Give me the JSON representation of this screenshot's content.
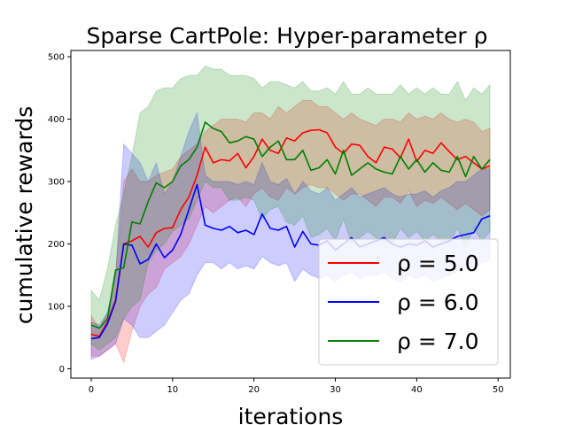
{
  "chart_data": {
    "type": "line",
    "title": "Sparse CartPole: Hyper-parameter ρ",
    "xlabel": "iterations",
    "ylabel": "cumulative rewards",
    "xlim": [
      -2.5,
      51.5
    ],
    "ylim": [
      -15,
      510
    ],
    "xticks": [
      0,
      10,
      20,
      30,
      40,
      50
    ],
    "yticks": [
      0,
      100,
      200,
      300,
      400,
      500
    ],
    "legend_position": "lower-right",
    "x": [
      0,
      1,
      2,
      3,
      4,
      5,
      6,
      7,
      8,
      9,
      10,
      11,
      12,
      13,
      14,
      15,
      16,
      17,
      18,
      19,
      20,
      21,
      22,
      23,
      24,
      25,
      26,
      27,
      28,
      29,
      30,
      31,
      32,
      33,
      34,
      35,
      36,
      37,
      38,
      39,
      40,
      41,
      42,
      43,
      44,
      45,
      46,
      47,
      48,
      49
    ],
    "series": [
      {
        "name": "ρ = 5.0",
        "color": "#ff0000",
        "fill": "rgba(255,0,0,0.2)",
        "values": [
          55,
          52,
          75,
          110,
          200,
          205,
          212,
          195,
          218,
          225,
          226,
          255,
          275,
          310,
          355,
          330,
          335,
          333,
          345,
          322,
          340,
          368,
          350,
          345,
          370,
          365,
          378,
          382,
          383,
          378,
          355,
          345,
          360,
          358,
          340,
          330,
          355,
          352,
          338,
          368,
          332,
          350,
          345,
          362,
          348,
          335,
          340,
          330,
          320,
          325
        ],
        "upper": [
          85,
          65,
          88,
          150,
          300,
          320,
          300,
          300,
          310,
          315,
          320,
          340,
          350,
          360,
          380,
          390,
          400,
          400,
          400,
          395,
          410,
          410,
          400,
          420,
          410,
          420,
          430,
          430,
          420,
          420,
          410,
          400,
          410,
          400,
          395,
          390,
          400,
          400,
          395,
          410,
          400,
          405,
          400,
          410,
          400,
          395,
          400,
          395,
          380,
          385
        ],
        "lower": [
          20,
          20,
          30,
          40,
          10,
          60,
          100,
          120,
          130,
          160,
          170,
          180,
          200,
          230,
          260,
          250,
          260,
          270,
          275,
          260,
          280,
          290,
          275,
          270,
          290,
          280,
          290,
          295,
          290,
          290,
          280,
          270,
          280,
          280,
          270,
          260,
          275,
          275,
          265,
          285,
          260,
          270,
          265,
          275,
          265,
          255,
          265,
          255,
          245,
          255
        ]
      },
      {
        "name": "ρ = 6.0",
        "color": "#0000ff",
        "fill": "rgba(0,0,255,0.2)",
        "values": [
          48,
          50,
          72,
          108,
          200,
          198,
          168,
          175,
          200,
          178,
          190,
          215,
          255,
          295,
          230,
          225,
          222,
          228,
          218,
          222,
          215,
          248,
          225,
          222,
          228,
          195,
          220,
          200,
          198,
          205,
          190,
          200,
          210,
          195,
          200,
          205,
          210,
          200,
          195,
          200,
          198,
          205,
          195,
          200,
          205,
          212,
          215,
          218,
          240,
          245
        ],
        "upper": [
          75,
          70,
          90,
          150,
          360,
          345,
          330,
          300,
          330,
          280,
          300,
          340,
          380,
          410,
          310,
          300,
          300,
          300,
          295,
          300,
          295,
          330,
          300,
          295,
          305,
          280,
          300,
          285,
          280,
          290,
          270,
          280,
          290,
          275,
          280,
          285,
          290,
          280,
          275,
          280,
          280,
          285,
          275,
          285,
          290,
          300,
          300,
          310,
          320,
          320
        ],
        "lower": [
          15,
          20,
          30,
          40,
          80,
          70,
          50,
          50,
          60,
          70,
          90,
          110,
          120,
          150,
          170,
          170,
          160,
          170,
          160,
          165,
          160,
          180,
          170,
          165,
          170,
          140,
          160,
          150,
          145,
          150,
          140,
          150,
          155,
          145,
          150,
          150,
          155,
          145,
          140,
          150,
          145,
          150,
          140,
          145,
          150,
          155,
          160,
          160,
          170,
          175
        ]
      },
      {
        "name": "ρ = 7.0",
        "color": "#008000",
        "fill": "rgba(0,128,0,0.2)",
        "values": [
          70,
          65,
          80,
          158,
          162,
          235,
          232,
          268,
          298,
          290,
          300,
          325,
          335,
          355,
          395,
          385,
          380,
          362,
          365,
          372,
          368,
          340,
          355,
          365,
          335,
          335,
          350,
          318,
          322,
          335,
          312,
          350,
          310,
          320,
          330,
          320,
          315,
          312,
          340,
          320,
          335,
          315,
          330,
          318,
          315,
          340,
          308,
          340,
          320,
          335
        ],
        "upper": [
          125,
          110,
          160,
          230,
          280,
          340,
          410,
          420,
          445,
          450,
          450,
          465,
          470,
          470,
          485,
          480,
          480,
          470,
          470,
          470,
          465,
          450,
          460,
          460,
          455,
          450,
          460,
          445,
          445,
          450,
          440,
          460,
          440,
          440,
          450,
          440,
          440,
          440,
          455,
          440,
          450,
          440,
          450,
          440,
          440,
          460,
          430,
          450,
          440,
          455
        ],
        "lower": [
          40,
          30,
          40,
          50,
          80,
          100,
          110,
          170,
          190,
          200,
          220,
          230,
          240,
          270,
          300,
          290,
          290,
          270,
          270,
          275,
          270,
          240,
          255,
          260,
          235,
          230,
          245,
          210,
          215,
          225,
          205,
          240,
          200,
          210,
          220,
          210,
          205,
          200,
          225,
          210,
          220,
          205,
          215,
          205,
          200,
          225,
          195,
          225,
          205,
          220
        ]
      }
    ]
  }
}
